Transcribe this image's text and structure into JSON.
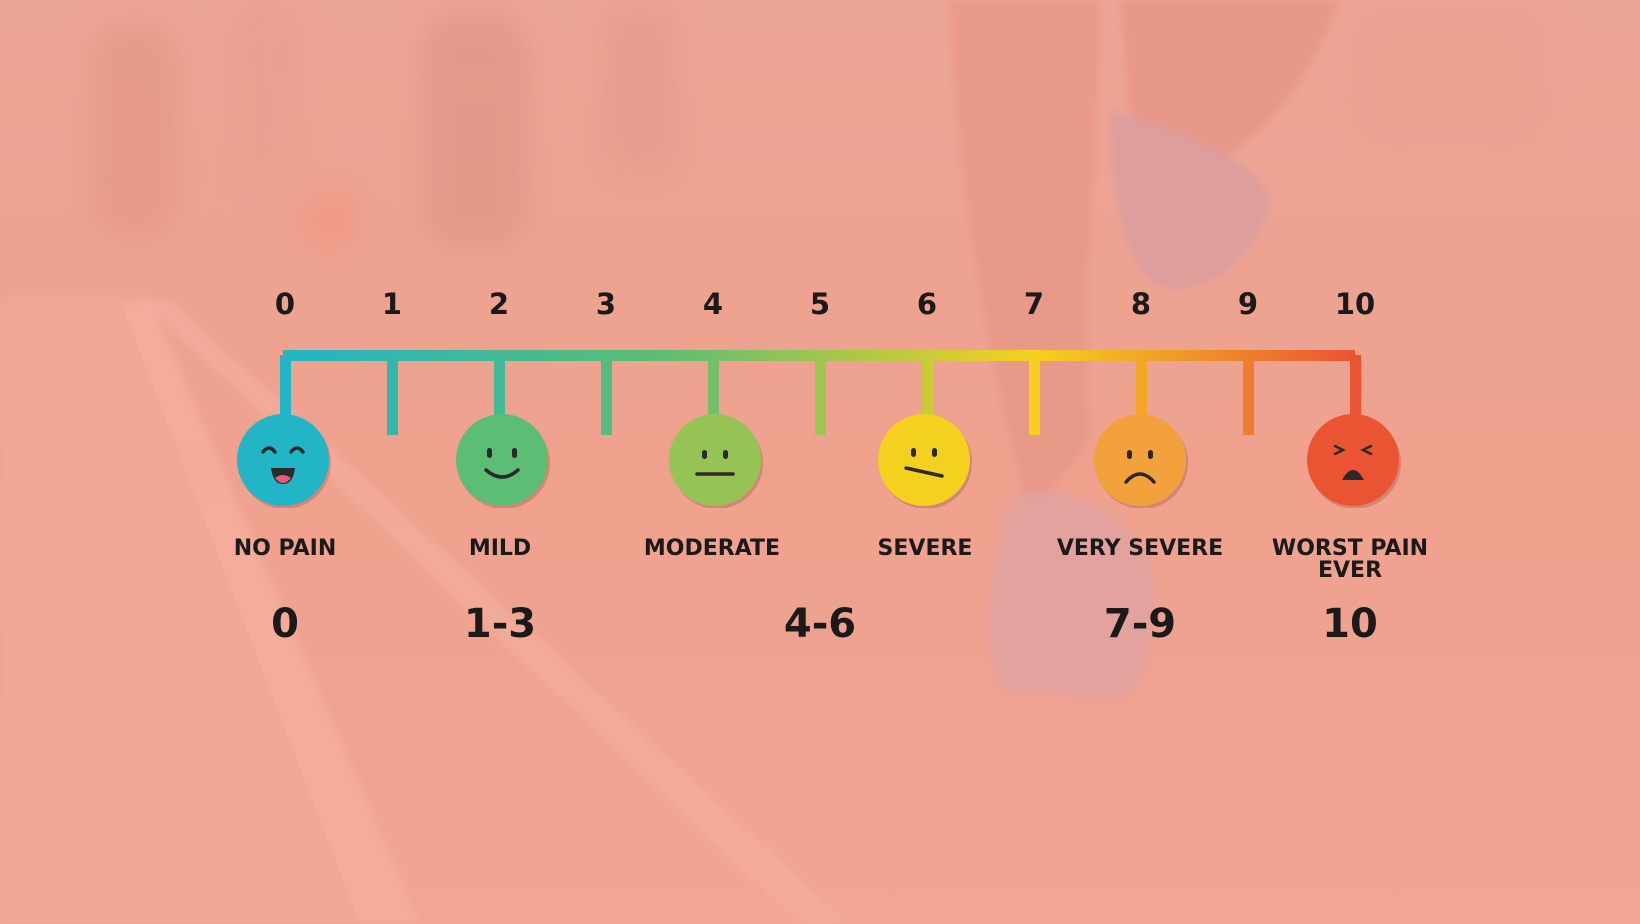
{
  "scale_numbers": [
    "0",
    "1",
    "2",
    "3",
    "4",
    "5",
    "6",
    "7",
    "8",
    "9",
    "10"
  ],
  "levels": [
    {
      "label": "NO PAIN",
      "range": "0",
      "face": "laughing-face-icon",
      "color": "#21b5c6"
    },
    {
      "label": "MILD",
      "range": "1-3",
      "face": "smiling-face-icon",
      "color": "#5cbd74"
    },
    {
      "label": "MODERATE",
      "range": "",
      "face": "neutral-face-icon",
      "color": "#96c454"
    },
    {
      "label": "SEVERE",
      "range": "",
      "face": "uneasy-face-icon",
      "color": "#f5d11f"
    },
    {
      "label": "VERY SEVERE",
      "range": "7-9",
      "face": "frowning-face-icon",
      "color": "#f3a13c"
    },
    {
      "label": "WORST PAIN EVER",
      "range": "10",
      "face": "crying-face-icon",
      "color": "#eb5432"
    }
  ],
  "middle_range": "4-6",
  "gradient_colors": [
    "#21b5c6",
    "#5cbd74",
    "#f5d11f",
    "#eb5432"
  ],
  "overlay_color": "#f4a491"
}
